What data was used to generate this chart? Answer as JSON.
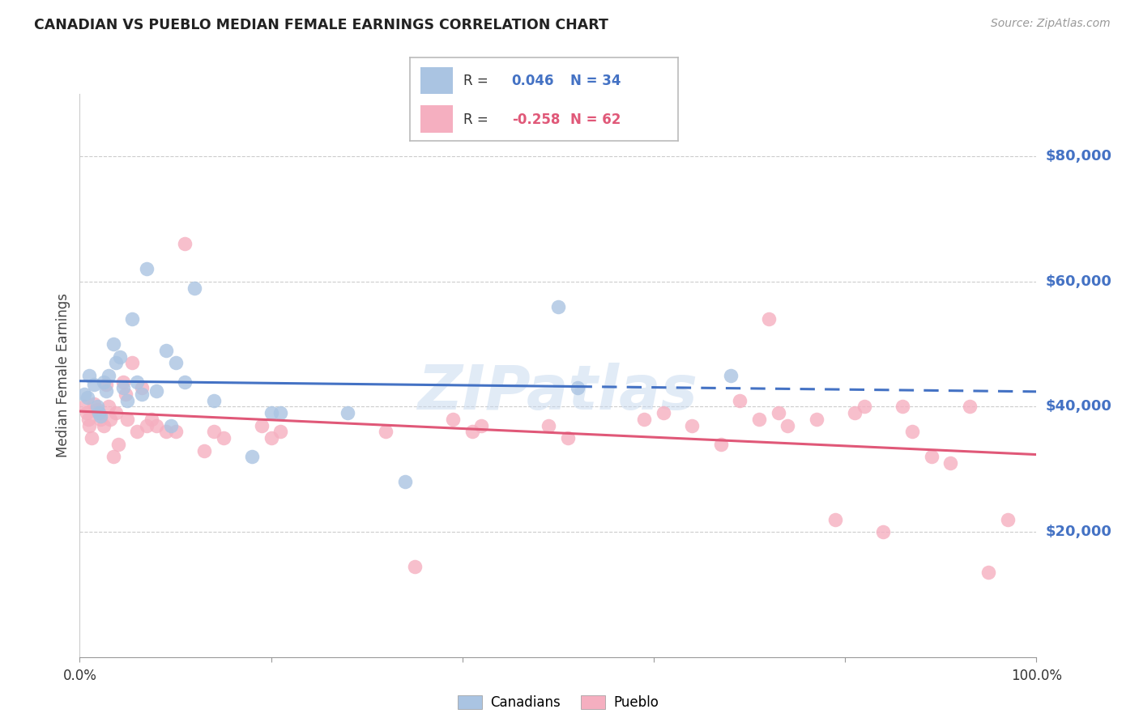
{
  "title": "CANADIAN VS PUEBLO MEDIAN FEMALE EARNINGS CORRELATION CHART",
  "source": "Source: ZipAtlas.com",
  "ylabel": "Median Female Earnings",
  "ytick_labels": [
    "$20,000",
    "$40,000",
    "$60,000",
    "$80,000"
  ],
  "ytick_values": [
    20000,
    40000,
    60000,
    80000
  ],
  "ymin": 0,
  "ymax": 90000,
  "xmin": 0.0,
  "xmax": 1.0,
  "legend_canadians_R": "0.046",
  "legend_canadians_N": "34",
  "legend_pueblo_R": "-0.258",
  "legend_pueblo_N": "62",
  "color_canadian": "#aac4e2",
  "color_pueblo": "#f5afc0",
  "color_canadian_line": "#4472c4",
  "color_pueblo_line": "#e05878",
  "color_ytick": "#4472c4",
  "background_color": "#ffffff",
  "grid_color": "#cccccc",
  "canadians_x": [
    0.005,
    0.008,
    0.01,
    0.015,
    0.018,
    0.02,
    0.022,
    0.025,
    0.028,
    0.03,
    0.035,
    0.038,
    0.042,
    0.045,
    0.05,
    0.055,
    0.06,
    0.065,
    0.07,
    0.08,
    0.09,
    0.095,
    0.1,
    0.11,
    0.12,
    0.14,
    0.18,
    0.2,
    0.21,
    0.28,
    0.34,
    0.5,
    0.52,
    0.68
  ],
  "canadians_y": [
    42000,
    41500,
    45000,
    43500,
    40000,
    39000,
    38500,
    44000,
    42500,
    45000,
    50000,
    47000,
    48000,
    43000,
    41000,
    54000,
    44000,
    42000,
    62000,
    42500,
    49000,
    37000,
    47000,
    44000,
    59000,
    41000,
    32000,
    39000,
    39000,
    39000,
    28000,
    56000,
    43000,
    45000
  ],
  "pueblo_x": [
    0.005,
    0.007,
    0.009,
    0.01,
    0.012,
    0.015,
    0.018,
    0.02,
    0.022,
    0.025,
    0.028,
    0.03,
    0.032,
    0.035,
    0.038,
    0.04,
    0.045,
    0.048,
    0.05,
    0.055,
    0.06,
    0.065,
    0.07,
    0.075,
    0.08,
    0.09,
    0.1,
    0.11,
    0.13,
    0.14,
    0.15,
    0.19,
    0.2,
    0.21,
    0.32,
    0.35,
    0.39,
    0.41,
    0.42,
    0.49,
    0.51,
    0.59,
    0.61,
    0.64,
    0.67,
    0.69,
    0.71,
    0.72,
    0.73,
    0.74,
    0.77,
    0.79,
    0.81,
    0.82,
    0.84,
    0.86,
    0.87,
    0.89,
    0.91,
    0.93,
    0.95,
    0.97
  ],
  "pueblo_y": [
    40000,
    39000,
    38000,
    37000,
    35000,
    40500,
    39500,
    39000,
    38000,
    37000,
    43500,
    40000,
    38000,
    32000,
    39000,
    34000,
    44000,
    42000,
    38000,
    47000,
    36000,
    43000,
    37000,
    38000,
    37000,
    36000,
    36000,
    66000,
    33000,
    36000,
    35000,
    37000,
    35000,
    36000,
    36000,
    14500,
    38000,
    36000,
    37000,
    37000,
    35000,
    38000,
    39000,
    37000,
    34000,
    41000,
    38000,
    54000,
    39000,
    37000,
    38000,
    22000,
    39000,
    40000,
    20000,
    40000,
    36000,
    32000,
    31000,
    40000,
    13500,
    22000
  ],
  "watermark": "ZIPatlas"
}
